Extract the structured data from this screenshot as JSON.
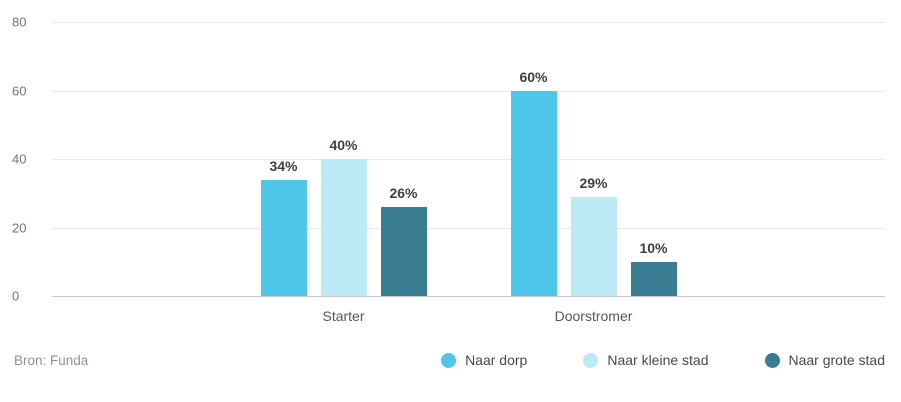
{
  "chart_data": {
    "type": "bar",
    "categories": [
      "Starter",
      "Doorstromer"
    ],
    "series": [
      {
        "name": "Naar dorp",
        "color": "#4ec7ea",
        "values": [
          34,
          60
        ]
      },
      {
        "name": "Naar kleine stad",
        "color": "#bde8f6",
        "values": [
          40,
          29
        ]
      },
      {
        "name": "Naar grote stad",
        "color": "#3a7d92",
        "values": [
          26,
          10
        ]
      }
    ],
    "value_suffix": "%",
    "ylim": [
      0,
      80
    ],
    "yticks": [
      0,
      20,
      40,
      60,
      80
    ],
    "grid": true,
    "legend_position": "bottom-right",
    "source": "Bron: Funda",
    "title": "",
    "xlabel": "",
    "ylabel": ""
  }
}
